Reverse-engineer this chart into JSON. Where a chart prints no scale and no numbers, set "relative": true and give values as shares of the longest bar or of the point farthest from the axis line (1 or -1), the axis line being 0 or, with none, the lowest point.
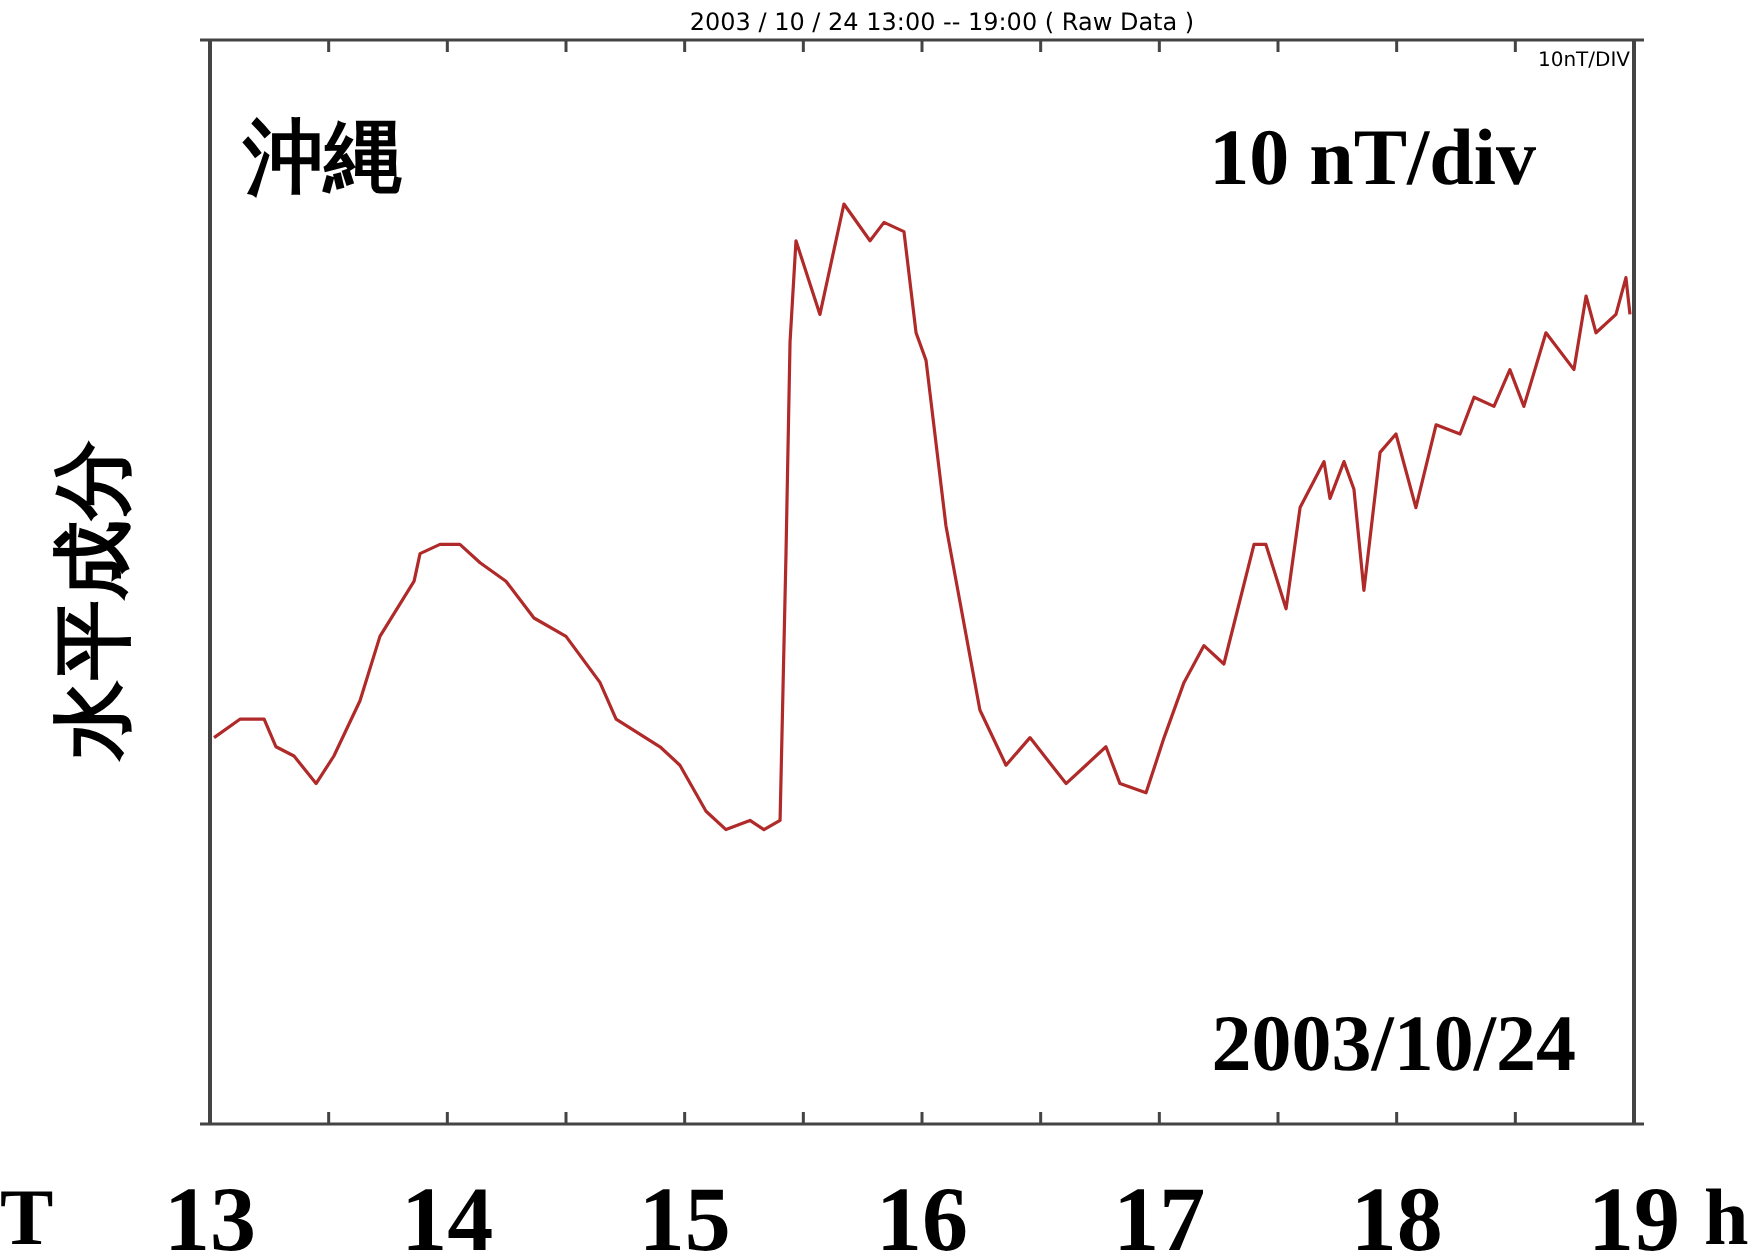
{
  "chart_data": {
    "type": "line",
    "relative": true,
    "title": "2003 / 10 / 24   13:00 -- 19:00 ( Raw Data )",
    "ylabel": "水平成分",
    "xlabel": "h",
    "annotations": [
      "沖縄",
      "10 nT/div",
      "2003/10/24",
      "10nT/DIV",
      "T"
    ],
    "xlim": [
      13,
      19
    ],
    "xticks": [
      13,
      {
        "value": 13.5,
        "label": null
      },
      14,
      {
        "value": 14.5,
        "label": null
      },
      15,
      {
        "value": 15.5,
        "label": null
      },
      16,
      {
        "value": 16.5,
        "label": null
      },
      17,
      {
        "value": 17.5,
        "label": null
      },
      18,
      {
        "value": 18.5,
        "label": null
      },
      19
    ],
    "grid": false,
    "marker": "none",
    "line_style": "solid",
    "color": "#b02a2a",
    "x": [
      13.017,
      13.126,
      13.228,
      13.278,
      13.354,
      13.447,
      13.522,
      13.632,
      13.716,
      13.86,
      13.885,
      13.969,
      14.053,
      14.138,
      14.247,
      14.365,
      14.5,
      14.643,
      14.711,
      14.896,
      14.98,
      15.09,
      15.174,
      15.275,
      15.334,
      15.402,
      15.427,
      15.444,
      15.469,
      15.57,
      15.671,
      15.781,
      15.84,
      15.924,
      15.975,
      16.017,
      16.101,
      16.244,
      16.354,
      16.455,
      16.607,
      16.691,
      16.775,
      16.834,
      16.944,
      17.02,
      17.104,
      17.188,
      17.272,
      17.399,
      17.449,
      17.534,
      17.593,
      17.694,
      17.719,
      17.778,
      17.82,
      17.862,
      17.93,
      17.997,
      18.081,
      18.166,
      18.267,
      18.326,
      18.41,
      18.477,
      18.536,
      18.629,
      18.747,
      18.798,
      18.84,
      18.924,
      18.966,
      18.983
    ],
    "values": [
      0.42,
      0.44,
      0.44,
      0.41,
      0.4,
      0.37,
      0.4,
      0.46,
      0.53,
      0.59,
      0.62,
      0.63,
      0.63,
      0.61,
      0.59,
      0.55,
      0.53,
      0.48,
      0.44,
      0.41,
      0.39,
      0.34,
      0.32,
      0.33,
      0.32,
      0.33,
      0.62,
      0.85,
      0.96,
      0.88,
      1.0,
      0.96,
      0.98,
      0.97,
      0.86,
      0.83,
      0.65,
      0.45,
      0.39,
      0.42,
      0.37,
      0.39,
      0.41,
      0.37,
      0.36,
      0.42,
      0.48,
      0.52,
      0.5,
      0.63,
      0.63,
      0.56,
      0.67,
      0.72,
      0.68,
      0.72,
      0.69,
      0.58,
      0.73,
      0.75,
      0.67,
      0.76,
      0.75,
      0.79,
      0.78,
      0.82,
      0.78,
      0.86,
      0.82,
      0.9,
      0.86,
      0.88,
      0.92,
      0.88
    ]
  }
}
